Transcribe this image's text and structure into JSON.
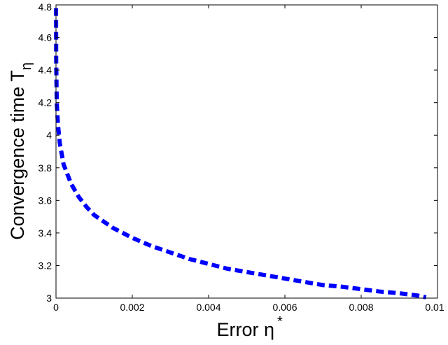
{
  "chart_data": {
    "type": "line",
    "title": "",
    "xlabel": {
      "text": "Error η",
      "superscript": "*"
    },
    "ylabel": {
      "text": "Convergence time  T",
      "subscript": "η"
    },
    "xlim": [
      0,
      0.01
    ],
    "ylim": [
      3,
      4.8
    ],
    "xticks": [
      0,
      0.002,
      0.004,
      0.006,
      0.008,
      0.01
    ],
    "xtick_labels": [
      "0",
      "0.002",
      "0.004",
      "0.006",
      "0.008",
      "0.01"
    ],
    "yticks": [
      3,
      3.2,
      3.4,
      3.6,
      3.8,
      4,
      4.2,
      4.4,
      4.6,
      4.8
    ],
    "ytick_labels": [
      "3",
      "3.2",
      "3.4",
      "3.6",
      "3.8",
      "4",
      "4.2",
      "4.4",
      "4.6",
      "4.8"
    ],
    "grid": false,
    "series": [
      {
        "color": "#0000ff",
        "line_style": "dashed",
        "x": [
          8e-07,
          5e-06,
          2e-05,
          5e-05,
          0.0001,
          0.0002,
          0.0004,
          0.0006,
          0.0008,
          0.001,
          0.0015,
          0.002,
          0.0025,
          0.003,
          0.0035,
          0.004,
          0.0045,
          0.005,
          0.0055,
          0.006,
          0.0065,
          0.007,
          0.0075,
          0.008,
          0.0085,
          0.009,
          0.0095,
          0.0097
        ],
        "y": [
          4.78,
          4.45,
          4.2,
          4.07,
          3.95,
          3.82,
          3.7,
          3.62,
          3.56,
          3.51,
          3.43,
          3.37,
          3.32,
          3.28,
          3.24,
          3.21,
          3.18,
          3.16,
          3.14,
          3.12,
          3.1,
          3.08,
          3.07,
          3.055,
          3.04,
          3.03,
          3.015,
          3.005
        ]
      }
    ]
  }
}
